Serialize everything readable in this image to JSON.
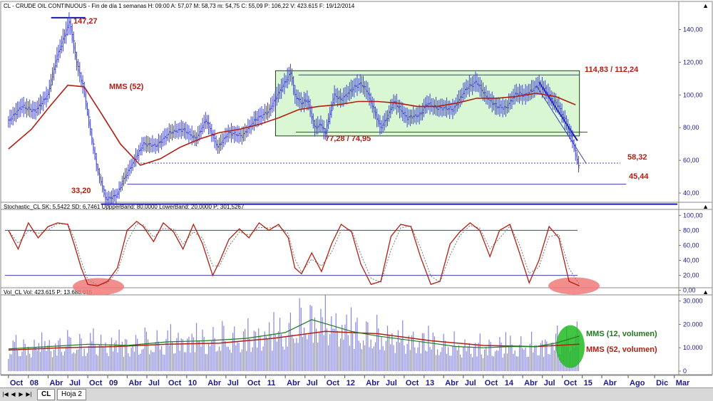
{
  "colors": {
    "price": "#3d43d6",
    "ma": "#b21e12",
    "guide": "#3b3fb0",
    "box_fill": "#d9f7d3",
    "stoch_k": "#b21e12",
    "stoch_d": "#7a7a7a",
    "vol_bar": "#8686e0",
    "vol_ma12": "#1e7a1e",
    "vol_ma52": "#b21e12",
    "highlight_red": "#f07a7a",
    "highlight_green": "#22bb22"
  },
  "chart_data": [
    {
      "type": "line",
      "header": "CL - CRUDE OIL CONTINUOUS - Fin de día 1 semanas  H: 09:00  A: 57,07  M: 58,73  m: 54,75  C: 55,09  P: 106,22  V: 423.615  F: 19/12/2014",
      "x_range": [
        "2007-10-01",
        "2015-03-31"
      ],
      "ylim": [
        30,
        152
      ],
      "y_ticks": [
        "40,00",
        "60,00",
        "80,00",
        "100,00",
        "120,00",
        "140,00"
      ],
      "series": [
        {
          "kind": "price",
          "x": [
            "2007-10-01",
            "2007-12-01",
            "2008-02-01",
            "2008-04-01",
            "2008-05-15",
            "2008-07-11",
            "2008-08-15",
            "2008-09-15",
            "2008-10-15",
            "2008-11-15",
            "2008-12-26",
            "2009-02-15",
            "2009-03-15",
            "2009-05-01",
            "2009-06-15",
            "2009-08-15",
            "2009-10-15",
            "2009-12-15",
            "2010-02-15",
            "2010-04-01",
            "2010-05-25",
            "2010-07-15",
            "2010-09-15",
            "2010-11-15",
            "2011-01-15",
            "2011-03-01",
            "2011-04-29",
            "2011-05-15",
            "2011-06-15",
            "2011-07-15",
            "2011-08-15",
            "2011-09-15",
            "2011-10-04",
            "2011-11-15",
            "2011-12-15",
            "2012-02-15",
            "2012-03-15",
            "2012-04-15",
            "2012-05-15",
            "2012-06-15",
            "2012-07-15",
            "2012-08-15",
            "2012-10-15",
            "2012-12-15",
            "2013-01-15",
            "2013-03-01",
            "2013-04-15",
            "2013-05-15",
            "2013-07-15",
            "2013-08-31",
            "2013-10-15",
            "2013-11-30",
            "2014-01-15",
            "2014-03-01",
            "2014-04-15",
            "2014-06-15",
            "2014-07-15",
            "2014-08-15",
            "2014-09-15",
            "2014-10-15",
            "2014-11-15",
            "2014-12-19"
          ],
          "y": [
            84,
            93,
            90,
            100,
            124,
            145,
            118,
            103,
            78,
            55,
            36,
            39,
            48,
            59,
            70,
            69,
            77,
            79,
            73,
            85,
            68,
            77,
            75,
            85,
            90,
            101,
            114,
            100,
            95,
            97,
            80,
            82,
            76,
            100,
            97,
            105,
            107,
            102,
            91,
            80,
            86,
            96,
            86,
            88,
            95,
            92,
            92,
            91,
            104,
            108,
            99,
            93,
            92,
            101,
            100,
            106,
            103,
            97,
            93,
            84,
            74,
            55
          ]
        },
        {
          "kind": "ma52",
          "x": [
            "2007-10-01",
            "2008-01-15",
            "2008-04-15",
            "2008-07-01",
            "2008-09-15",
            "2008-12-01",
            "2009-03-01",
            "2009-06-01",
            "2009-09-01",
            "2009-12-01",
            "2010-03-01",
            "2010-06-01",
            "2010-09-01",
            "2010-12-01",
            "2011-03-01",
            "2011-06-01",
            "2011-09-01",
            "2011-12-01",
            "2012-03-01",
            "2012-06-01",
            "2012-09-01",
            "2012-12-01",
            "2013-03-01",
            "2013-06-01",
            "2013-09-01",
            "2013-12-01",
            "2014-03-01",
            "2014-06-01",
            "2014-09-01",
            "2014-12-01"
          ],
          "y": [
            67,
            79,
            94,
            106,
            105,
            89,
            70,
            57,
            61,
            68,
            73,
            77,
            79,
            82,
            86,
            91,
            93,
            94,
            96,
            96,
            95,
            93,
            93,
            95,
            98,
            98,
            99,
            101,
            99,
            94
          ]
        }
      ],
      "annotations": [
        {
          "text": "147,27",
          "y": 147.27
        },
        {
          "text": "33,20",
          "y": 33.2
        },
        {
          "text": "MMS (52)"
        },
        {
          "text": "114,83 / 112,24",
          "y": 112.24
        },
        {
          "text": "77,28 / 74,95",
          "y": 76
        },
        {
          "text": "58,32",
          "y": 58.32
        },
        {
          "text": "45,44",
          "y": 45.44
        }
      ]
    },
    {
      "type": "line",
      "header": "Stochastic_CL  SK: 5,5422  SD: 6,7461  UppperBand: 80,0000  LowerBand: 20,0000  P: 301,5267",
      "ylim": [
        -6,
        106
      ],
      "y_ticks": [
        "0,00",
        "20,00",
        "40,00",
        "60,00",
        "80,00",
        "100,00"
      ],
      "bands": [
        80,
        20
      ],
      "series": [
        {
          "kind": "stoch",
          "x": [
            "2007-10-01",
            "2007-11-15",
            "2008-01-01",
            "2008-02-15",
            "2008-04-01",
            "2008-05-15",
            "2008-07-01",
            "2008-08-01",
            "2008-09-01",
            "2008-10-01",
            "2008-11-15",
            "2009-01-01",
            "2009-02-15",
            "2009-04-01",
            "2009-05-15",
            "2009-06-15",
            "2009-08-01",
            "2009-09-15",
            "2009-11-01",
            "2009-12-15",
            "2010-02-01",
            "2010-03-15",
            "2010-05-01",
            "2010-06-01",
            "2010-07-15",
            "2010-09-01",
            "2010-10-15",
            "2010-12-01",
            "2011-01-15",
            "2011-03-01",
            "2011-04-15",
            "2011-05-15",
            "2011-06-15",
            "2011-08-01",
            "2011-09-15",
            "2011-11-01",
            "2011-12-15",
            "2012-02-01",
            "2012-03-15",
            "2012-05-01",
            "2012-06-15",
            "2012-08-01",
            "2012-09-15",
            "2012-11-01",
            "2012-12-15",
            "2013-02-01",
            "2013-03-15",
            "2013-05-01",
            "2013-06-15",
            "2013-08-01",
            "2013-09-15",
            "2013-11-01",
            "2013-12-15",
            "2014-02-01",
            "2014-03-15",
            "2014-05-01",
            "2014-06-15",
            "2014-08-01",
            "2014-09-15",
            "2014-11-01",
            "2014-12-19"
          ],
          "y": [
            80,
            55,
            90,
            70,
            85,
            90,
            88,
            60,
            30,
            8,
            6,
            12,
            30,
            80,
            92,
            85,
            65,
            90,
            78,
            55,
            88,
            62,
            20,
            38,
            68,
            82,
            70,
            90,
            80,
            88,
            70,
            30,
            22,
            50,
            25,
            62,
            88,
            78,
            35,
            8,
            12,
            72,
            88,
            85,
            45,
            8,
            12,
            62,
            78,
            90,
            80,
            45,
            80,
            88,
            52,
            10,
            40,
            85,
            70,
            12,
            6
          ]
        }
      ]
    },
    {
      "type": "bar",
      "header": "Vol_CL  Vol: 423.615  P: 13.688.615",
      "ylim": [
        -1500,
        32000
      ],
      "y_ticks": [
        "0",
        "10.000",
        "20.000",
        "30.000"
      ],
      "series": [
        {
          "name": "MMS (12, volumen)",
          "kind": "vol_ma12",
          "x": [
            "2007-10-01",
            "2008-04-01",
            "2008-10-01",
            "2009-04-01",
            "2009-10-01",
            "2010-04-01",
            "2010-10-01",
            "2011-04-01",
            "2011-08-01",
            "2011-10-15",
            "2012-02-01",
            "2012-06-01",
            "2012-10-01",
            "2013-02-01",
            "2013-06-01",
            "2013-10-01",
            "2014-02-01",
            "2014-06-01",
            "2014-09-01",
            "2014-12-19"
          ],
          "y": [
            9500,
            10500,
            11500,
            11000,
            12500,
            13000,
            14000,
            16500,
            22000,
            20000,
            17000,
            15000,
            13500,
            12000,
            10500,
            10000,
            10500,
            10500,
            12000,
            15000
          ]
        },
        {
          "name": "MMS (52, volumen)",
          "kind": "vol_ma52",
          "x": [
            "2007-10-01",
            "2008-06-01",
            "2009-02-01",
            "2009-10-01",
            "2010-06-01",
            "2011-02-01",
            "2011-10-01",
            "2012-06-01",
            "2013-02-01",
            "2013-10-01",
            "2014-06-01",
            "2014-12-19"
          ],
          "y": [
            9000,
            10000,
            10500,
            11500,
            12000,
            14000,
            17000,
            16000,
            13000,
            11000,
            10500,
            11500
          ]
        }
      ]
    }
  ],
  "x_axis": {
    "labels": [
      {
        "t": "Oct",
        "d": "2007-10-01"
      },
      {
        "t": "08",
        "d": "2008-01-01"
      },
      {
        "t": "Abr",
        "d": "2008-04-01"
      },
      {
        "t": "Jul",
        "d": "2008-07-01"
      },
      {
        "t": "Oct",
        "d": "2008-10-01"
      },
      {
        "t": "09",
        "d": "2009-01-01"
      },
      {
        "t": "Abr",
        "d": "2009-04-01"
      },
      {
        "t": "Jul",
        "d": "2009-07-01"
      },
      {
        "t": "Oct",
        "d": "2009-10-01"
      },
      {
        "t": "10",
        "d": "2010-01-01"
      },
      {
        "t": "Abr",
        "d": "2010-04-01"
      },
      {
        "t": "Jul",
        "d": "2010-07-01"
      },
      {
        "t": "Oct",
        "d": "2010-10-01"
      },
      {
        "t": "11",
        "d": "2011-01-01"
      },
      {
        "t": "Abr",
        "d": "2011-04-01"
      },
      {
        "t": "Jul",
        "d": "2011-07-01"
      },
      {
        "t": "Oct",
        "d": "2011-10-01"
      },
      {
        "t": "12",
        "d": "2012-01-01"
      },
      {
        "t": "Abr",
        "d": "2012-04-01"
      },
      {
        "t": "Jul",
        "d": "2012-07-01"
      },
      {
        "t": "Oct",
        "d": "2012-10-01"
      },
      {
        "t": "13",
        "d": "2013-01-01"
      },
      {
        "t": "Abr",
        "d": "2013-04-01"
      },
      {
        "t": "Jul",
        "d": "2013-07-01"
      },
      {
        "t": "Oct",
        "d": "2013-10-01"
      },
      {
        "t": "14",
        "d": "2014-01-01"
      },
      {
        "t": "Abr",
        "d": "2014-04-01"
      },
      {
        "t": "Jul",
        "d": "2014-07-01"
      },
      {
        "t": "Oct",
        "d": "2014-10-01"
      },
      {
        "t": "15",
        "d": "2015-01-01"
      },
      {
        "t": "Abr",
        "d": "2015-04-01"
      },
      {
        "t": "Ago",
        "d": "2015-08-01"
      },
      {
        "t": "Dic",
        "d": "2015-12-01"
      },
      {
        "t": "Mar",
        "d": "2016-03-01"
      }
    ]
  },
  "tabs": {
    "nav": [
      "|◀",
      "◀",
      "▶",
      "▶|"
    ],
    "items": [
      "CL",
      "Hoja 2"
    ]
  }
}
